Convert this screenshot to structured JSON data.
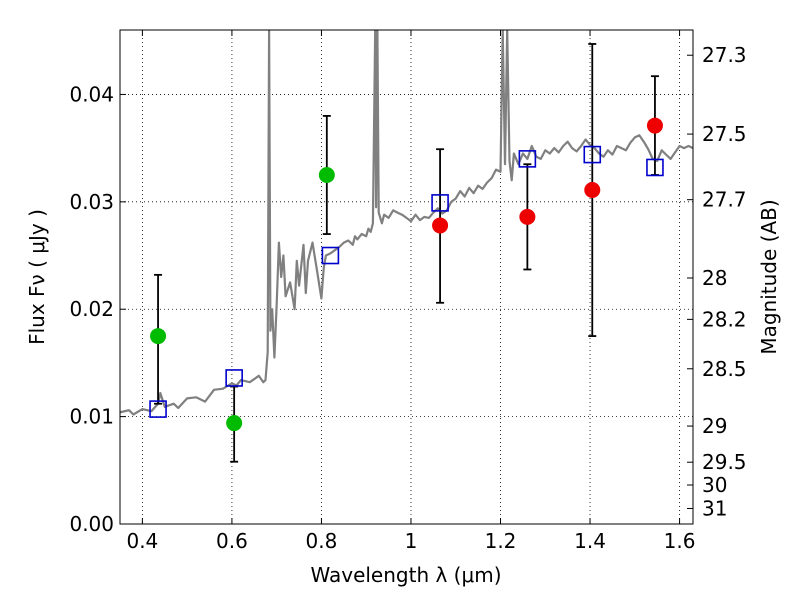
{
  "chart_data": {
    "type": "scatter",
    "title": "",
    "xlabel": "Wavelength  λ (μm)",
    "ylabel": "Flux  Fν  ( μJy )",
    "ylabel_right": "Magnitude (AB)",
    "xlim": [
      0.35,
      1.63
    ],
    "ylim": [
      0.0,
      0.046
    ],
    "x_ticks": [
      0.4,
      0.6,
      0.8,
      1.0,
      1.2,
      1.4,
      1.6
    ],
    "x_tick_labels": [
      "0.4",
      "0.6",
      "0.8",
      "1",
      "1.2",
      "1.4",
      "1.6"
    ],
    "y_ticks": [
      0.0,
      0.01,
      0.02,
      0.03,
      0.04
    ],
    "y_tick_labels": [
      "0.00",
      "0.01",
      "0.02",
      "0.03",
      "0.04"
    ],
    "mag_ticks": [
      "27.3",
      "27.5",
      "27.7",
      "28",
      "28.2",
      "28.5",
      "29",
      "29.5",
      "30",
      "31"
    ],
    "grid": true,
    "colors": {
      "spectrum": "#808080",
      "green": "#00bb00",
      "red": "#ee0000",
      "model_box": "#0000cc",
      "errorbar": "#000000"
    },
    "series": [
      {
        "marker": "circle",
        "color": "#00bb00",
        "points": [
          {
            "x": 0.435,
            "y": 0.0175,
            "lo": 0.0112,
            "hi": 0.0232
          },
          {
            "x": 0.605,
            "y": 0.0094,
            "lo": 0.0058,
            "hi": 0.0128
          },
          {
            "x": 0.812,
            "y": 0.0325,
            "lo": 0.027,
            "hi": 0.038
          }
        ]
      },
      {
        "marker": "circle",
        "color": "#ee0000",
        "points": [
          {
            "x": 1.065,
            "y": 0.0278,
            "lo": 0.0206,
            "hi": 0.0349
          },
          {
            "x": 1.26,
            "y": 0.0286,
            "lo": 0.0237,
            "hi": 0.0335
          },
          {
            "x": 1.405,
            "y": 0.0311,
            "lo": 0.0175,
            "hi": 0.0447
          },
          {
            "x": 1.545,
            "y": 0.0371,
            "lo": 0.0325,
            "hi": 0.0417
          }
        ]
      },
      {
        "marker": "square",
        "color": "#0000cc",
        "points": [
          {
            "x": 0.435,
            "y": 0.0107
          },
          {
            "x": 0.605,
            "y": 0.0136
          },
          {
            "x": 0.82,
            "y": 0.025
          },
          {
            "x": 1.065,
            "y": 0.0299
          },
          {
            "x": 1.26,
            "y": 0.034
          },
          {
            "x": 1.405,
            "y": 0.0344
          },
          {
            "x": 1.545,
            "y": 0.0332
          }
        ]
      }
    ],
    "spectrum": [
      [
        0.35,
        0.0104
      ],
      [
        0.37,
        0.0106
      ],
      [
        0.38,
        0.0102
      ],
      [
        0.4,
        0.0107
      ],
      [
        0.42,
        0.0105
      ],
      [
        0.435,
        0.0112
      ],
      [
        0.44,
        0.0122
      ],
      [
        0.45,
        0.0109
      ],
      [
        0.47,
        0.0112
      ],
      [
        0.48,
        0.0108
      ],
      [
        0.5,
        0.0117
      ],
      [
        0.52,
        0.0118
      ],
      [
        0.54,
        0.0114
      ],
      [
        0.56,
        0.0125
      ],
      [
        0.58,
        0.0126
      ],
      [
        0.6,
        0.0131
      ],
      [
        0.61,
        0.0129
      ],
      [
        0.62,
        0.0134
      ],
      [
        0.64,
        0.0132
      ],
      [
        0.66,
        0.0138
      ],
      [
        0.67,
        0.0132
      ],
      [
        0.675,
        0.0134
      ],
      [
        0.68,
        0.016
      ],
      [
        0.683,
        0.046
      ],
      [
        0.686,
        0.018
      ],
      [
        0.69,
        0.02
      ],
      [
        0.695,
        0.0155
      ],
      [
        0.7,
        0.0205
      ],
      [
        0.705,
        0.0262
      ],
      [
        0.71,
        0.023
      ],
      [
        0.715,
        0.025
      ],
      [
        0.72,
        0.0212
      ],
      [
        0.73,
        0.0225
      ],
      [
        0.74,
        0.02
      ],
      [
        0.745,
        0.0245
      ],
      [
        0.75,
        0.0222
      ],
      [
        0.76,
        0.026
      ],
      [
        0.765,
        0.0215
      ],
      [
        0.77,
        0.0245
      ],
      [
        0.78,
        0.0262
      ],
      [
        0.79,
        0.0236
      ],
      [
        0.8,
        0.021
      ],
      [
        0.805,
        0.0238
      ],
      [
        0.81,
        0.025
      ],
      [
        0.82,
        0.0252
      ],
      [
        0.83,
        0.0255
      ],
      [
        0.84,
        0.0258
      ],
      [
        0.85,
        0.0262
      ],
      [
        0.86,
        0.0264
      ],
      [
        0.87,
        0.026
      ],
      [
        0.875,
        0.0268
      ],
      [
        0.88,
        0.0265
      ],
      [
        0.89,
        0.027
      ],
      [
        0.9,
        0.0268
      ],
      [
        0.905,
        0.0275
      ],
      [
        0.91,
        0.0272
      ],
      [
        0.915,
        0.028
      ],
      [
        0.92,
        0.046
      ],
      [
        0.922,
        0.0295
      ],
      [
        0.925,
        0.046
      ],
      [
        0.928,
        0.029
      ],
      [
        0.935,
        0.028
      ],
      [
        0.94,
        0.0288
      ],
      [
        0.95,
        0.0285
      ],
      [
        0.96,
        0.0292
      ],
      [
        0.97,
        0.029
      ],
      [
        0.98,
        0.0288
      ],
      [
        0.99,
        0.0285
      ],
      [
        1.0,
        0.0282
      ],
      [
        1.01,
        0.0288
      ],
      [
        1.02,
        0.0283
      ],
      [
        1.03,
        0.0286
      ],
      [
        1.04,
        0.0285
      ],
      [
        1.05,
        0.029
      ],
      [
        1.06,
        0.0294
      ],
      [
        1.07,
        0.0289
      ],
      [
        1.08,
        0.0292
      ],
      [
        1.09,
        0.03
      ],
      [
        1.1,
        0.0303
      ],
      [
        1.11,
        0.031
      ],
      [
        1.12,
        0.0305
      ],
      [
        1.13,
        0.0313
      ],
      [
        1.14,
        0.0308
      ],
      [
        1.15,
        0.0315
      ],
      [
        1.16,
        0.0312
      ],
      [
        1.17,
        0.0318
      ],
      [
        1.18,
        0.0322
      ],
      [
        1.19,
        0.033
      ],
      [
        1.2,
        0.0328
      ],
      [
        1.205,
        0.046
      ],
      [
        1.21,
        0.0335
      ],
      [
        1.215,
        0.046
      ],
      [
        1.22,
        0.0338
      ],
      [
        1.225,
        0.032
      ],
      [
        1.23,
        0.0345
      ],
      [
        1.24,
        0.0335
      ],
      [
        1.25,
        0.0345
      ],
      [
        1.26,
        0.034
      ],
      [
        1.27,
        0.0352
      ],
      [
        1.28,
        0.0342
      ],
      [
        1.29,
        0.034
      ],
      [
        1.3,
        0.0348
      ],
      [
        1.31,
        0.0345
      ],
      [
        1.32,
        0.035
      ],
      [
        1.33,
        0.0346
      ],
      [
        1.34,
        0.0352
      ],
      [
        1.35,
        0.0356
      ],
      [
        1.36,
        0.035
      ],
      [
        1.37,
        0.0347
      ],
      [
        1.38,
        0.0352
      ],
      [
        1.39,
        0.0358
      ],
      [
        1.4,
        0.0353
      ],
      [
        1.41,
        0.035
      ],
      [
        1.42,
        0.0345
      ],
      [
        1.43,
        0.0342
      ],
      [
        1.44,
        0.0348
      ],
      [
        1.45,
        0.0344
      ],
      [
        1.46,
        0.0352
      ],
      [
        1.47,
        0.035
      ],
      [
        1.48,
        0.0348
      ],
      [
        1.49,
        0.0355
      ],
      [
        1.5,
        0.036
      ],
      [
        1.51,
        0.0362
      ],
      [
        1.52,
        0.0356
      ],
      [
        1.53,
        0.0349
      ],
      [
        1.54,
        0.034
      ],
      [
        1.55,
        0.0338
      ],
      [
        1.56,
        0.0348
      ],
      [
        1.57,
        0.0344
      ],
      [
        1.58,
        0.034
      ],
      [
        1.59,
        0.0346
      ],
      [
        1.6,
        0.0352
      ],
      [
        1.61,
        0.035
      ],
      [
        1.62,
        0.0352
      ],
      [
        1.63,
        0.035
      ]
    ]
  }
}
